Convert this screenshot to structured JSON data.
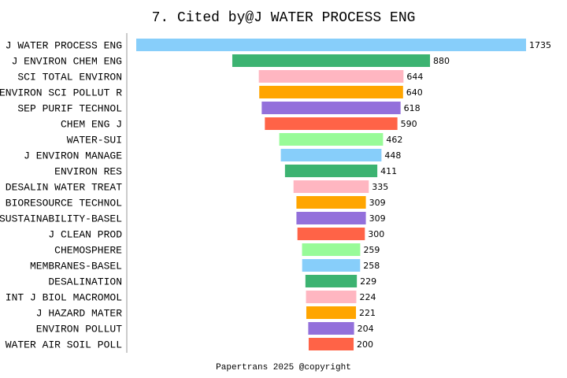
{
  "chart_data": {
    "type": "bar",
    "orientation": "horizontal-centered",
    "title": "7. Cited by@J WATER PROCESS ENG",
    "footer": "Papertrans 2025 @copyright",
    "categories": [
      "J WATER PROCESS ENG",
      "J ENVIRON CHEM ENG",
      "SCI TOTAL ENVIRON",
      "ENVIRON SCI POLLUT R",
      "SEP PURIF TECHNOL",
      "CHEM ENG J",
      "WATER-SUI",
      "J ENVIRON MANAGE",
      "ENVIRON RES",
      "DESALIN WATER TREAT",
      "BIORESOURCE TECHNOL",
      "SUSTAINABILITY-BASEL",
      "J CLEAN PROD",
      "CHEMOSPHERE",
      "MEMBRANES-BASEL",
      "DESALINATION",
      "INT J BIOL MACROMOL",
      "J HAZARD MATER",
      "ENVIRON POLLUT",
      "WATER AIR SOIL POLL"
    ],
    "values": [
      1735,
      880,
      644,
      640,
      618,
      590,
      462,
      448,
      411,
      335,
      309,
      309,
      300,
      259,
      258,
      229,
      224,
      221,
      204,
      200
    ],
    "colors": [
      "#87CEFA",
      "#3CB371",
      "#FFB6C1",
      "#FFA500",
      "#9370DB",
      "#FF6347",
      "#98FB98"
    ]
  }
}
